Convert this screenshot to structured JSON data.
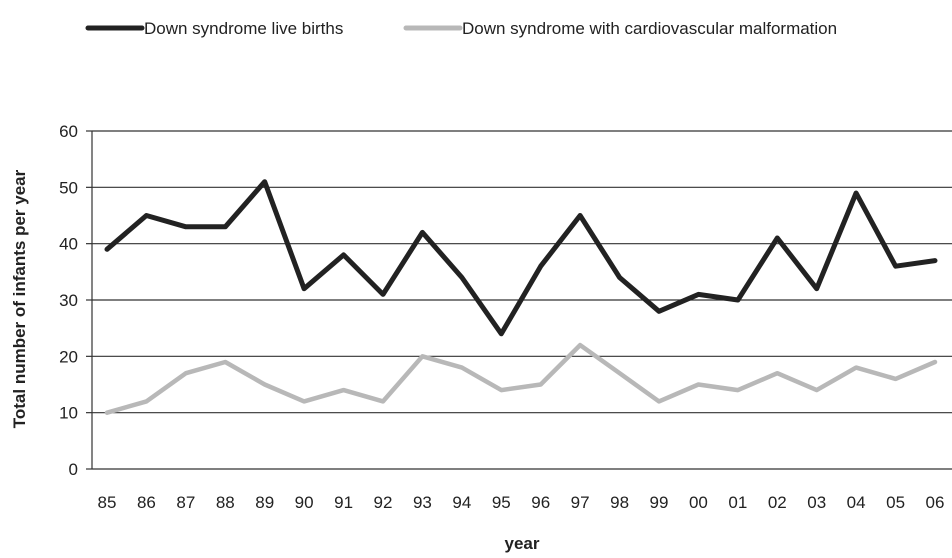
{
  "chart_data": {
    "type": "line",
    "title": "",
    "xlabel": "year",
    "ylabel": "Total number of infants per year",
    "categories": [
      "85",
      "86",
      "87",
      "88",
      "89",
      "90",
      "91",
      "92",
      "93",
      "94",
      "95",
      "96",
      "97",
      "98",
      "99",
      "00",
      "01",
      "02",
      "03",
      "04",
      "05",
      "06"
    ],
    "ylim": [
      0,
      60
    ],
    "yticks": [
      0,
      10,
      20,
      30,
      40,
      50,
      60
    ],
    "grid": "horizontal",
    "legend_position": "top",
    "series": [
      {
        "name": "Down syndrome live births",
        "color": "#222222",
        "values": [
          39,
          45,
          43,
          43,
          51,
          32,
          38,
          31,
          42,
          34,
          24,
          36,
          45,
          34,
          28,
          31,
          30,
          41,
          32,
          49,
          36,
          37
        ]
      },
      {
        "name": "Down syndrome with cardiovascular malformation",
        "color": "#b8b8b8",
        "values": [
          10,
          12,
          17,
          19,
          15,
          12,
          14,
          12,
          20,
          18,
          14,
          15,
          22,
          17,
          12,
          15,
          14,
          17,
          14,
          18,
          16,
          19
        ]
      }
    ]
  }
}
